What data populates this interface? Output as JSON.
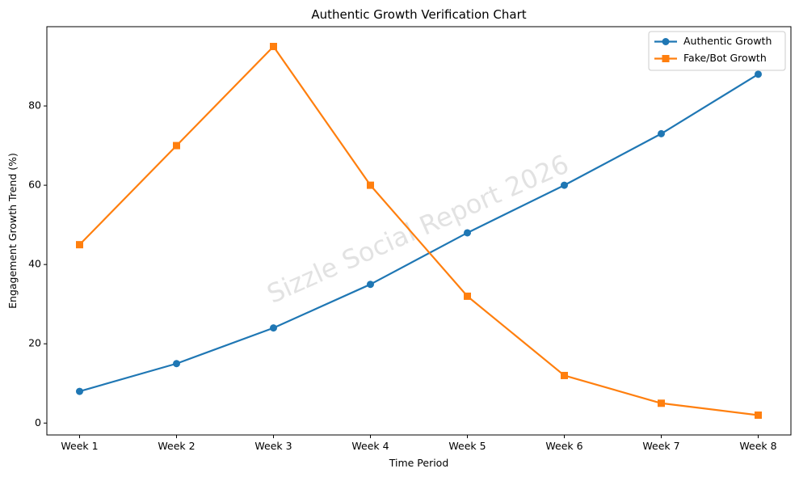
{
  "chart_data": {
    "type": "line",
    "title": "Authentic Growth Verification Chart",
    "xlabel": "Time Period",
    "ylabel": "Engagement Growth Trend (%)",
    "categories": [
      "Week 1",
      "Week 2",
      "Week 3",
      "Week 4",
      "Week 5",
      "Week 6",
      "Week 7",
      "Week 8"
    ],
    "ylim": [
      -3,
      100
    ],
    "yticks": [
      0,
      20,
      40,
      60,
      80
    ],
    "grid": false,
    "legend_position": "top-right",
    "watermark": "Sizzle Social Report 2026",
    "series": [
      {
        "name": "Authentic Growth",
        "color": "#1f77b4",
        "marker": "circle",
        "values": [
          8,
          15,
          24,
          35,
          48,
          60,
          73,
          88
        ]
      },
      {
        "name": "Fake/Bot Growth",
        "color": "#ff7f0e",
        "marker": "square",
        "values": [
          45,
          70,
          95,
          60,
          32,
          12,
          5,
          2
        ]
      }
    ]
  }
}
